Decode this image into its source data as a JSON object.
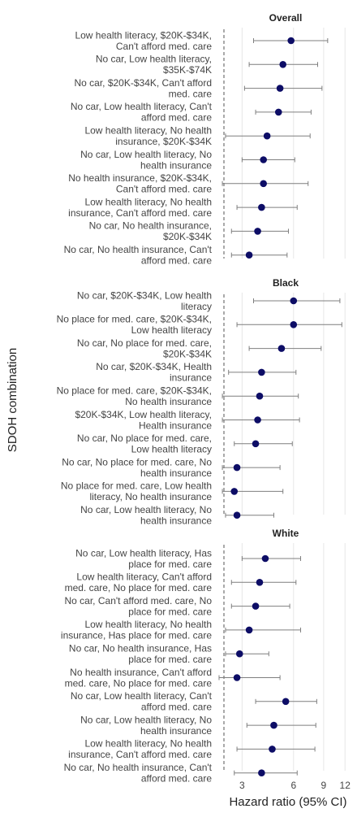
{
  "chart_data": {
    "type": "scatter",
    "subtype": "forest-plot",
    "xlabel": "Hazard ratio (95% CI)",
    "ylabel": "SDOH combination",
    "x_scale": "log2",
    "xlim": [
      2.2,
      13.5
    ],
    "xticks": [
      3,
      6,
      9,
      12
    ],
    "reference_line": 2.2,
    "grid": "vertical",
    "point_color": "#0d0d66",
    "errorbar_color": "#7f7f7f",
    "panels": [
      {
        "title": "Overall",
        "rows": [
          {
            "label": "Low health literacy, $20K-$34K, Can't afford med. care",
            "hr": 5.8,
            "lo": 3.5,
            "hi": 9.5
          },
          {
            "label": "No car, Low health literacy, $35K-$74K",
            "hr": 5.2,
            "lo": 3.3,
            "hi": 8.3
          },
          {
            "label": "No car, $20K-$34K, Can't afford med. care",
            "hr": 5.0,
            "lo": 3.1,
            "hi": 8.8
          },
          {
            "label": "No car, Low health literacy, Can't afford med. care",
            "hr": 4.9,
            "lo": 3.6,
            "hi": 7.6
          },
          {
            "label": "Low health literacy, No health insurance, $20K-$34K",
            "hr": 4.2,
            "lo": 2.4,
            "hi": 7.5
          },
          {
            "label": "No car, Low health literacy, No health insurance",
            "hr": 4.0,
            "lo": 3.0,
            "hi": 6.1
          },
          {
            "label": "No health insurance, $20K-$34K, Can't afford med. care",
            "hr": 4.0,
            "lo": 2.3,
            "hi": 7.3
          },
          {
            "label": "Low health literacy, No health insurance, Can't afford med. care",
            "hr": 3.9,
            "lo": 2.8,
            "hi": 6.3
          },
          {
            "label": "No car, No health insurance, $20K-$34K",
            "hr": 3.7,
            "lo": 2.6,
            "hi": 5.6
          },
          {
            "label": "No car, No health insurance, Can't afford med. care",
            "hr": 3.3,
            "lo": 2.6,
            "hi": 5.5
          }
        ]
      },
      {
        "title": "Black",
        "rows": [
          {
            "label": "No car, $20K-$34K, Low health literacy",
            "hr": 6.0,
            "lo": 3.5,
            "hi": 11.2
          },
          {
            "label": "No place for med. care, $20K-$34K, Low health literacy",
            "hr": 6.0,
            "lo": 2.8,
            "hi": 11.5
          },
          {
            "label": "No car, No place for med. care, $20K-$34K",
            "hr": 5.1,
            "lo": 3.3,
            "hi": 8.7
          },
          {
            "label": "No car, $20K-$34K, Health insurance",
            "hr": 3.9,
            "lo": 2.5,
            "hi": 6.2
          },
          {
            "label": "No place for med. care, $20K-$34K, No health insurance",
            "hr": 3.8,
            "lo": 2.3,
            "hi": 6.4
          },
          {
            "label": "$20K-$34K, Low health literacy, Health insurance",
            "hr": 3.7,
            "lo": 2.3,
            "hi": 6.5
          },
          {
            "label": "No car, No place for med. care, Low health literacy",
            "hr": 3.6,
            "lo": 2.7,
            "hi": 5.9
          },
          {
            "label": "No car, No place for med. care, No health insurance",
            "hr": 2.8,
            "lo": 2.3,
            "hi": 5.0
          },
          {
            "label": "No place for med. care, Low health literacy, No health insurance",
            "hr": 2.7,
            "lo": 2.3,
            "hi": 5.2
          },
          {
            "label": "No car, Low health literacy, No health insurance",
            "hr": 2.8,
            "lo": 2.4,
            "hi": 4.6
          }
        ]
      },
      {
        "title": "White",
        "rows": [
          {
            "label": "No car, Low health literacy, Has place for med. care",
            "hr": 4.1,
            "lo": 3.0,
            "hi": 6.6
          },
          {
            "label": "Low health literacy, Can't afford med. care, No place for med. care",
            "hr": 3.8,
            "lo": 2.6,
            "hi": 6.2
          },
          {
            "label": "No car, Can't afford med. care, No place for med. care",
            "hr": 3.6,
            "lo": 2.6,
            "hi": 5.7
          },
          {
            "label": "Low health literacy, No health insurance, Has place for med. care",
            "hr": 3.3,
            "lo": 2.4,
            "hi": 6.6
          },
          {
            "label": "No car, No health insurance, Has place for med. care",
            "hr": 2.9,
            "lo": 2.4,
            "hi": 4.3
          },
          {
            "label": "No health insurance, Can't afford med. care, No place for med. care",
            "hr": 2.8,
            "lo": 2.2,
            "hi": 5.0
          },
          {
            "label": "No car, Low health literacy, Can't afford med. care",
            "hr": 5.4,
            "lo": 3.6,
            "hi": 8.2
          },
          {
            "label": "No car, Low health literacy, No health insurance",
            "hr": 4.6,
            "lo": 3.2,
            "hi": 8.1
          },
          {
            "label": "Low health literacy, No health insurance, Can't afford med. care",
            "hr": 4.5,
            "lo": 2.8,
            "hi": 8.0
          },
          {
            "label": "No car, No health insurance, Can't afford med. care",
            "hr": 3.9,
            "lo": 2.7,
            "hi": 6.3
          }
        ]
      }
    ]
  }
}
